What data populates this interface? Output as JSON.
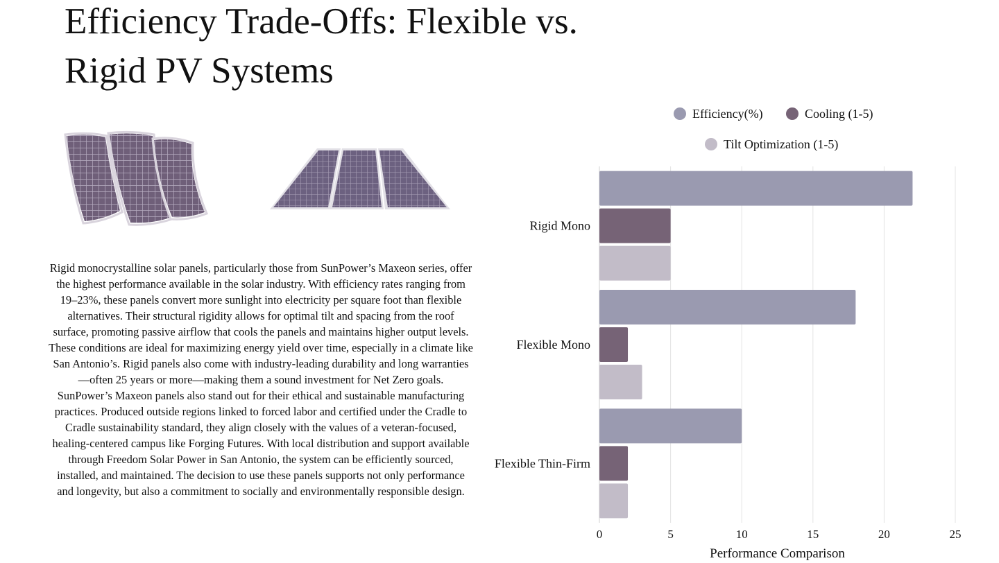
{
  "title": "Efficiency Trade-Offs: Flexible vs. Rigid PV Systems",
  "images": {
    "flexible": "flexible-solar-panels-photo",
    "rigid": "rigid-solar-panels-photo"
  },
  "body": {
    "paragraph1": "Rigid monocrystalline solar panels, particularly those from SunPower’s Maxeon series, offer the highest performance available in the solar industry. With efficiency rates ranging from 19–23%, these panels convert more sunlight into electricity per square foot than flexible alternatives. Their structural rigidity allows for optimal tilt and spacing from the roof surface, promoting passive airflow that cools the panels and maintains higher output levels. These conditions are ideal for maximizing energy yield over time, especially in a climate like San Antonio’s. Rigid panels also come with industry-leading durability and long warranties—often 25 years or more—making them a sound investment for Net Zero goals.",
    "paragraph2": "SunPower’s Maxeon panels also stand out for their ethical and sustainable manufacturing practices. Produced outside regions linked to forced labor and certified under the Cradle to Cradle sustainability standard, they align closely with the values of a veteran-focused, healing-centered campus like Forging Futures. With local distribution and support available through Freedom Solar Power in San Antonio, the system can be efficiently sourced, installed, and maintained. The decision to use these panels supports not only performance and longevity, but also a commitment to socially and environmentally responsible design."
  },
  "chart_data": {
    "type": "bar",
    "orientation": "horizontal",
    "categories": [
      "Rigid Mono",
      "Flexible Mono",
      "Flexible Thin-Firm"
    ],
    "series": [
      {
        "name": "Efficiency(%)",
        "color": "#9a9ab0",
        "values": [
          22,
          18,
          10
        ]
      },
      {
        "name": "Cooling (1-5)",
        "color": "#766376",
        "values": [
          5,
          2,
          2
        ]
      },
      {
        "name": "Tilt Optimization (1-5)",
        "color": "#c2bcc8",
        "values": [
          5,
          3,
          2
        ]
      }
    ],
    "xlabel": "Performance Comparison",
    "ylabel": "",
    "xlim": [
      0,
      25
    ],
    "xticks": [
      0,
      5,
      10,
      15,
      20,
      25
    ],
    "grid": true,
    "legend_position": "top"
  }
}
